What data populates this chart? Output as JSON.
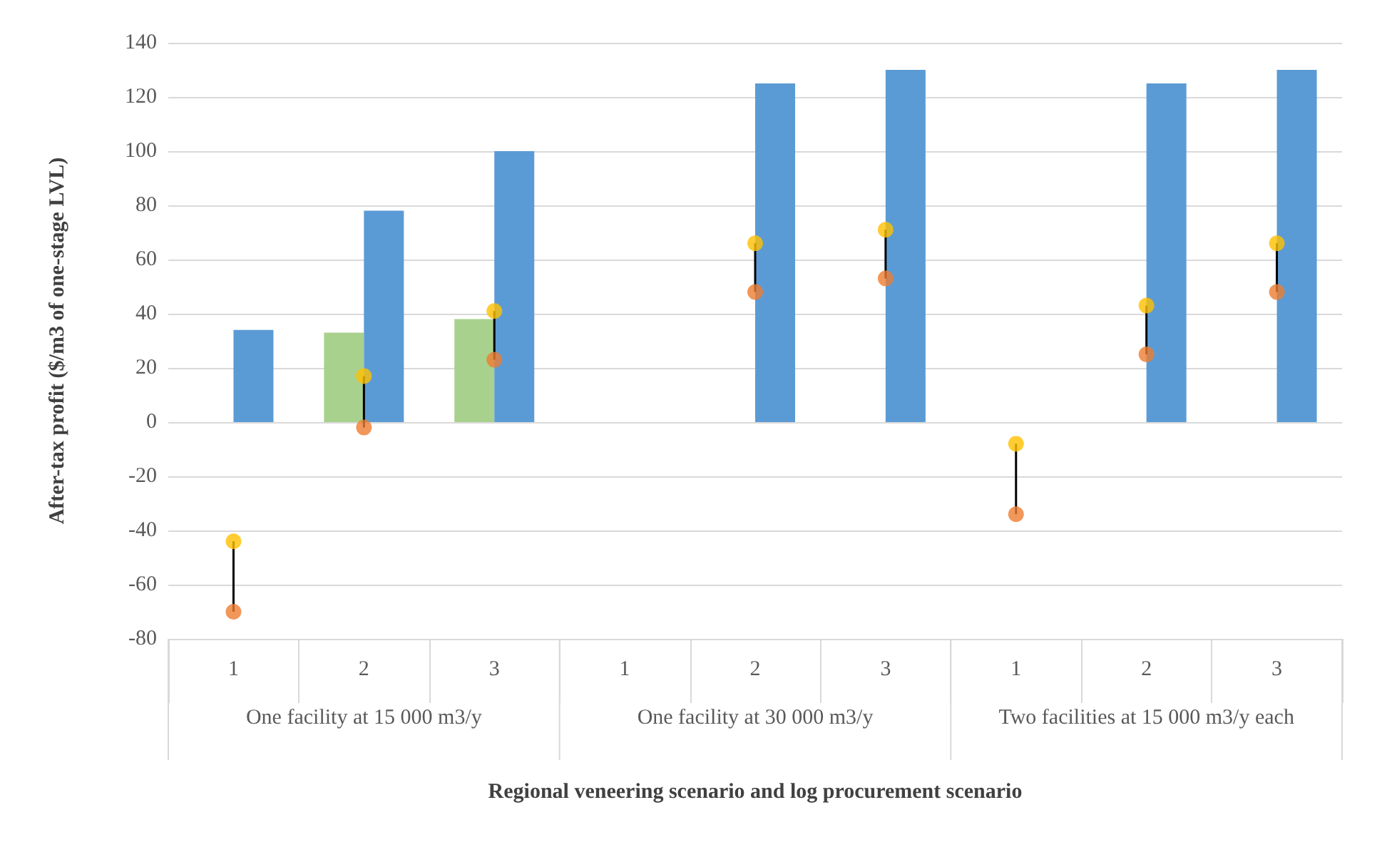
{
  "chart_data": {
    "type": "bar",
    "xlabel": "Regional veneering scenario and log procurement scenario",
    "ylabel": "After-tax profit ($/m3 of one-stage LVL)",
    "categories": [
      "1",
      "2",
      "3",
      "1",
      "2",
      "3",
      "1",
      "2",
      "3"
    ],
    "series": [
      {
        "color": "#a9d18e",
        "values": [
          null,
          33,
          38,
          null,
          null,
          null,
          null,
          null,
          null
        ]
      },
      {
        "color": "#5b9bd5",
        "values": [
          34,
          78,
          100,
          null,
          125,
          130,
          null,
          125,
          130
        ]
      },
      {
        "type": "scatter",
        "color": "#ed7d31",
        "values": [
          -70,
          -2,
          23,
          null,
          48,
          53,
          -34,
          25,
          48
        ]
      },
      {
        "type": "scatter",
        "color": "#ffc000",
        "values": [
          -44,
          17,
          41,
          null,
          66,
          71,
          -8,
          43,
          66
        ]
      }
    ],
    "ylim": [
      -80,
      140
    ],
    "yticks": [
      -80,
      -60,
      -40,
      -20,
      0,
      20,
      40,
      60,
      80,
      100,
      120,
      140
    ],
    "grid": "y",
    "marker": "circle",
    "annotations": [
      "One facility at 15 000 m3/y",
      "One facility at 30 000 m3/y",
      "Two facilities at 15 000 m3/y each"
    ]
  }
}
